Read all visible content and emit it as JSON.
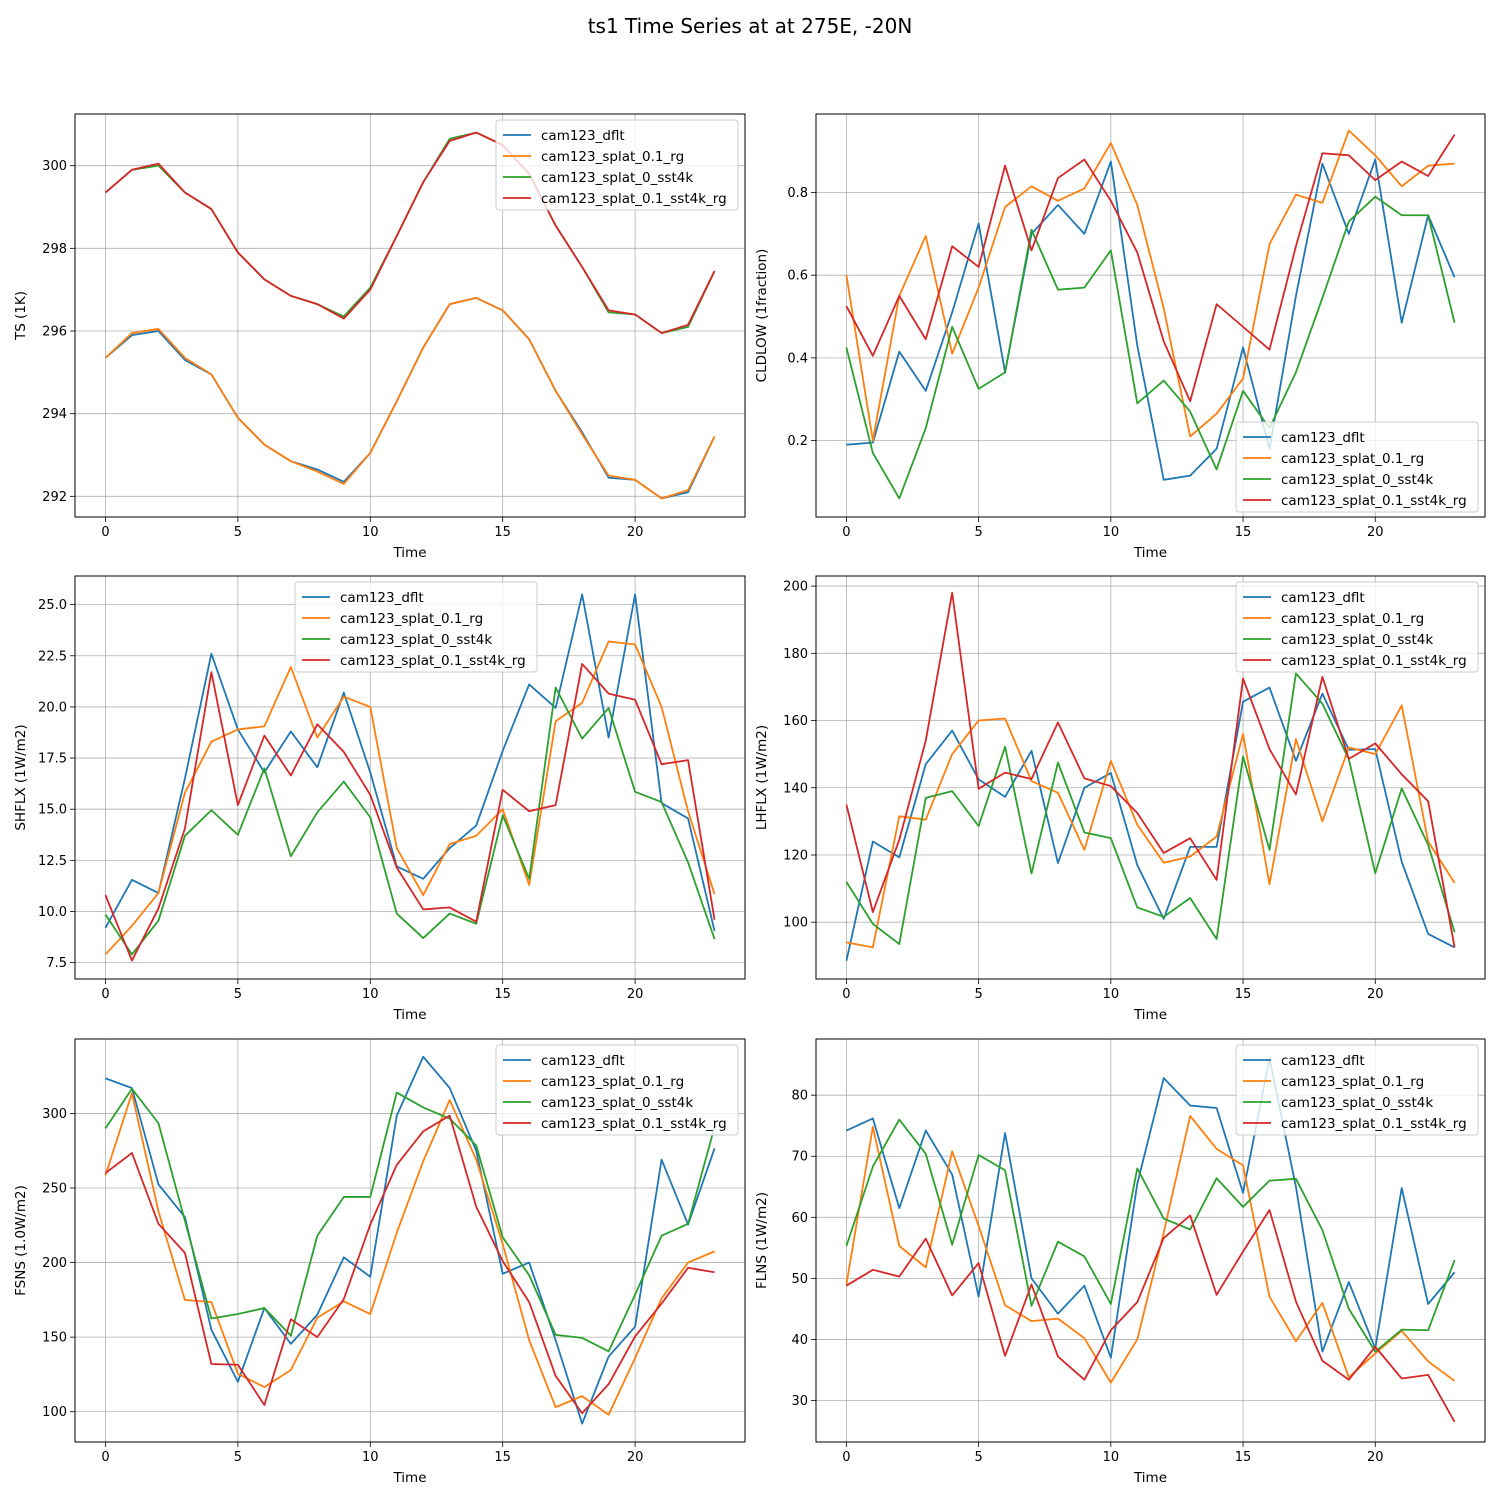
{
  "figure": {
    "title": "ts1 Time Series at at 275E, -20N"
  },
  "colors": {
    "cam123_dflt": "#1f77b4",
    "cam123_splat_0.1_rg": "#ff7f0e",
    "cam123_splat_0_sst4k": "#2ca02c",
    "cam123_splat_0.1_sst4k_rg": "#d62728"
  },
  "chart_data": [
    {
      "type": "line",
      "id": "ts",
      "title": "",
      "xlabel": "Time",
      "ylabel": "TS (1K)",
      "xlim": [
        -1.15,
        24.15
      ],
      "ylim": [
        291.5,
        301.25
      ],
      "xticks": [
        0,
        5,
        10,
        15,
        20
      ],
      "yticks": [
        292,
        294,
        296,
        298,
        300
      ],
      "ytick_labels": [
        "292",
        "294",
        "296",
        "298",
        "300"
      ],
      "grid": true,
      "legend": "top-right",
      "x": [
        0,
        1,
        2,
        3,
        4,
        5,
        6,
        7,
        8,
        9,
        10,
        11,
        12,
        13,
        14,
        15,
        16,
        17,
        18,
        19,
        20,
        21,
        22,
        23
      ],
      "series": [
        {
          "name": "cam123_dflt",
          "values": [
            295.35,
            295.9,
            296.0,
            295.3,
            294.95,
            293.9,
            293.25,
            292.85,
            292.65,
            292.35,
            293.05,
            294.3,
            295.6,
            296.65,
            296.8,
            296.5,
            295.8,
            294.55,
            293.55,
            292.45,
            292.4,
            291.95,
            292.1,
            293.45
          ]
        },
        {
          "name": "cam123_splat_0.1_rg",
          "values": [
            295.35,
            295.95,
            296.05,
            295.35,
            294.95,
            293.9,
            293.25,
            292.85,
            292.6,
            292.3,
            293.05,
            294.3,
            295.6,
            296.65,
            296.8,
            296.5,
            295.8,
            294.55,
            293.5,
            292.5,
            292.4,
            291.95,
            292.15,
            293.45
          ]
        },
        {
          "name": "cam123_splat_0_sst4k",
          "values": [
            299.35,
            299.9,
            300.0,
            299.35,
            298.95,
            297.9,
            297.25,
            296.85,
            296.65,
            296.35,
            297.05,
            298.3,
            299.6,
            300.65,
            300.8,
            300.5,
            299.8,
            298.55,
            297.55,
            296.45,
            296.4,
            295.95,
            296.1,
            297.45
          ]
        },
        {
          "name": "cam123_splat_0.1_sst4k_rg",
          "values": [
            299.35,
            299.9,
            300.05,
            299.35,
            298.95,
            297.9,
            297.25,
            296.85,
            296.65,
            296.3,
            297.0,
            298.3,
            299.6,
            300.6,
            300.8,
            300.5,
            299.8,
            298.55,
            297.55,
            296.5,
            296.4,
            295.95,
            296.15,
            297.45
          ]
        }
      ]
    },
    {
      "type": "line",
      "id": "cldlow",
      "title": "",
      "xlabel": "Time",
      "ylabel": "CLDLOW (1fraction)",
      "xlim": [
        -1.15,
        24.15
      ],
      "ylim": [
        0.015,
        0.99
      ],
      "xticks": [
        0,
        5,
        10,
        15,
        20
      ],
      "yticks": [
        0.2,
        0.4,
        0.6,
        0.8
      ],
      "ytick_labels": [
        "0.2",
        "0.4",
        "0.6",
        "0.8"
      ],
      "grid": true,
      "legend": "lower-right",
      "x": [
        0,
        1,
        2,
        3,
        4,
        5,
        6,
        7,
        8,
        9,
        10,
        11,
        12,
        13,
        14,
        15,
        16,
        17,
        18,
        19,
        20,
        21,
        22,
        23
      ],
      "series": [
        {
          "name": "cam123_dflt",
          "values": [
            0.19,
            0.195,
            0.415,
            0.32,
            0.51,
            0.725,
            0.365,
            0.7,
            0.77,
            0.7,
            0.875,
            0.43,
            0.105,
            0.115,
            0.18,
            0.425,
            0.18,
            0.55,
            0.87,
            0.7,
            0.88,
            0.485,
            0.745,
            0.595
          ]
        },
        {
          "name": "cam123_splat_0.1_rg",
          "values": [
            0.6,
            0.2,
            0.55,
            0.695,
            0.41,
            0.57,
            0.765,
            0.815,
            0.78,
            0.81,
            0.92,
            0.77,
            0.52,
            0.21,
            0.265,
            0.35,
            0.675,
            0.795,
            0.775,
            0.95,
            0.89,
            0.815,
            0.865,
            0.87
          ]
        },
        {
          "name": "cam123_splat_0_sst4k",
          "values": [
            0.425,
            0.17,
            0.06,
            0.23,
            0.475,
            0.325,
            0.365,
            0.71,
            0.565,
            0.57,
            0.66,
            0.29,
            0.345,
            0.27,
            0.13,
            0.32,
            0.23,
            0.365,
            0.545,
            0.73,
            0.79,
            0.745,
            0.745,
            0.485
          ]
        },
        {
          "name": "cam123_splat_0.1_sst4k_rg",
          "values": [
            0.525,
            0.405,
            0.55,
            0.445,
            0.67,
            0.62,
            0.865,
            0.66,
            0.835,
            0.88,
            0.78,
            0.655,
            0.44,
            0.295,
            0.53,
            0.475,
            0.42,
            0.67,
            0.895,
            0.89,
            0.83,
            0.875,
            0.84,
            0.94
          ]
        }
      ]
    },
    {
      "type": "line",
      "id": "shflx",
      "title": "",
      "xlabel": "Time",
      "ylabel": "SHFLX (1W/m2)",
      "xlim": [
        -1.15,
        24.15
      ],
      "ylim": [
        6.7,
        26.4
      ],
      "xticks": [
        0,
        5,
        10,
        15,
        20
      ],
      "yticks": [
        7.5,
        10.0,
        12.5,
        15.0,
        17.5,
        20.0,
        22.5,
        25.0
      ],
      "ytick_labels": [
        "7.5",
        "10.0",
        "12.5",
        "15.0",
        "17.5",
        "20.0",
        "22.5",
        "25.0"
      ],
      "grid": true,
      "legend": "top-center",
      "x": [
        0,
        1,
        2,
        3,
        4,
        5,
        6,
        7,
        8,
        9,
        10,
        11,
        12,
        13,
        14,
        15,
        16,
        17,
        18,
        19,
        20,
        21,
        22,
        23
      ],
      "series": [
        {
          "name": "cam123_dflt",
          "values": [
            9.2,
            11.55,
            10.9,
            16.5,
            22.6,
            18.9,
            16.8,
            18.8,
            17.05,
            20.7,
            16.8,
            12.2,
            11.6,
            13.1,
            14.2,
            17.85,
            21.1,
            19.95,
            25.5,
            18.5,
            25.5,
            15.3,
            14.55,
            9.05
          ]
        },
        {
          "name": "cam123_splat_0.1_rg",
          "values": [
            7.9,
            9.3,
            10.9,
            15.8,
            18.3,
            18.9,
            19.05,
            21.95,
            18.5,
            20.5,
            20.0,
            13.1,
            10.8,
            13.3,
            13.7,
            15.0,
            11.3,
            19.3,
            20.2,
            23.2,
            23.05,
            20.0,
            14.9,
            10.85
          ]
        },
        {
          "name": "cam123_splat_0_sst4k",
          "values": [
            9.85,
            7.9,
            9.55,
            13.7,
            14.95,
            13.75,
            17.0,
            12.7,
            14.85,
            16.35,
            14.6,
            9.9,
            8.7,
            9.9,
            9.4,
            14.7,
            11.6,
            20.95,
            18.45,
            19.95,
            15.85,
            15.35,
            12.4,
            8.65
          ]
        },
        {
          "name": "cam123_splat_0.1_sst4k_rg",
          "values": [
            10.8,
            7.6,
            10.15,
            14.05,
            21.7,
            15.2,
            18.6,
            16.65,
            19.15,
            17.8,
            15.7,
            12.15,
            10.1,
            10.2,
            9.5,
            15.95,
            14.9,
            15.2,
            22.1,
            20.65,
            20.35,
            17.2,
            17.4,
            9.6
          ]
        }
      ]
    },
    {
      "type": "line",
      "id": "lhflx",
      "title": "",
      "xlabel": "Time",
      "ylabel": "LHFLX (1W/m2)",
      "xlim": [
        -1.15,
        24.15
      ],
      "ylim": [
        83.1,
        203.0
      ],
      "xticks": [
        0,
        5,
        10,
        15,
        20
      ],
      "yticks": [
        100,
        120,
        140,
        160,
        180,
        200
      ],
      "ytick_labels": [
        "100",
        "120",
        "140",
        "160",
        "180",
        "200"
      ],
      "grid": true,
      "legend": "top-right",
      "x": [
        0,
        1,
        2,
        3,
        4,
        5,
        6,
        7,
        8,
        9,
        10,
        11,
        12,
        13,
        14,
        15,
        16,
        17,
        18,
        19,
        20,
        21,
        22,
        23
      ],
      "series": [
        {
          "name": "cam123_dflt",
          "values": [
            88.5,
            124.0,
            119.3,
            147.0,
            157.0,
            142.5,
            137.3,
            151.0,
            117.6,
            140.0,
            144.4,
            117.0,
            101.0,
            122.4,
            122.4,
            165.6,
            169.8,
            148.0,
            168.0,
            151.3,
            151.5,
            118.0,
            96.5,
            92.5
          ]
        },
        {
          "name": "cam123_splat_0.1_rg",
          "values": [
            94.0,
            92.5,
            131.5,
            130.5,
            150.0,
            160.0,
            160.6,
            142.0,
            138.5,
            121.5,
            148.0,
            129.0,
            117.7,
            119.5,
            125.5,
            156.0,
            111.3,
            154.5,
            130.0,
            152.0,
            150.0,
            164.5,
            124.0,
            111.7
          ]
        },
        {
          "name": "cam123_splat_0_sst4k",
          "values": [
            112.0,
            99.5,
            93.5,
            137.0,
            139.0,
            128.6,
            152.2,
            114.5,
            147.5,
            126.7,
            125.0,
            104.4,
            101.6,
            107.2,
            95.0,
            149.3,
            121.5,
            174.0,
            165.0,
            148.5,
            114.6,
            139.8,
            123.0,
            97.0
          ]
        },
        {
          "name": "cam123_splat_0.1_sst4k_rg",
          "values": [
            135.0,
            103.0,
            124.5,
            154.0,
            198.0,
            139.7,
            144.5,
            142.6,
            159.4,
            142.8,
            140.5,
            132.5,
            120.6,
            125.0,
            112.6,
            172.5,
            151.5,
            138.0,
            173.0,
            148.6,
            153.2,
            144.0,
            136.0,
            92.5
          ]
        }
      ]
    },
    {
      "type": "line",
      "id": "fsns",
      "title": "",
      "xlabel": "Time",
      "ylabel": "FSNS (1.0W/m2)",
      "xlim": [
        -1.15,
        24.15
      ],
      "ylim": [
        79.7,
        349.9
      ],
      "xticks": [
        0,
        5,
        10,
        15,
        20
      ],
      "yticks": [
        100,
        150,
        200,
        250,
        300
      ],
      "ytick_labels": [
        "100",
        "150",
        "200",
        "250",
        "300"
      ],
      "grid": true,
      "legend": "top-right",
      "x": [
        0,
        1,
        2,
        3,
        4,
        5,
        6,
        7,
        8,
        9,
        10,
        11,
        12,
        13,
        14,
        15,
        16,
        17,
        18,
        19,
        20,
        21,
        22,
        23
      ],
      "series": [
        {
          "name": "cam123_dflt",
          "values": [
            323.5,
            317.0,
            252.5,
            230.5,
            155.0,
            120.0,
            169.5,
            145.5,
            165.0,
            203.5,
            190.5,
            298.5,
            338.0,
            317.0,
            275.0,
            192.5,
            200.0,
            148.0,
            92.0,
            137.0,
            157.0,
            269.0,
            225.5,
            276.5
          ]
        },
        {
          "name": "cam123_splat_0.1_rg",
          "values": [
            258.5,
            313.5,
            234.5,
            175.0,
            173.5,
            125.5,
            116.5,
            128.0,
            163.0,
            174.0,
            165.5,
            220.0,
            268.0,
            309.0,
            269.0,
            212.5,
            148.0,
            103.0,
            110.5,
            98.0,
            136.0,
            176.0,
            200.0,
            207.5
          ]
        },
        {
          "name": "cam123_splat_0_sst4k",
          "values": [
            290.0,
            316.5,
            293.5,
            228.0,
            162.5,
            165.5,
            169.5,
            151.0,
            218.0,
            244.0,
            244.0,
            314.0,
            304.0,
            296.5,
            278.5,
            217.0,
            191.5,
            151.5,
            149.5,
            140.5,
            178.5,
            218.0,
            226.0,
            291.0
          ]
        },
        {
          "name": "cam123_splat_0.1_sst4k_rg",
          "values": [
            260.0,
            273.5,
            226.0,
            206.5,
            132.0,
            131.5,
            104.5,
            162.0,
            150.0,
            175.5,
            225.5,
            265.5,
            288.0,
            298.5,
            237.5,
            201.0,
            173.5,
            124.0,
            99.0,
            118.5,
            150.5,
            172.5,
            196.5,
            193.5
          ]
        }
      ]
    },
    {
      "type": "line",
      "id": "flns",
      "title": "",
      "xlabel": "Time",
      "ylabel": "FLNS (1W/m2)",
      "xlim": [
        -1.15,
        24.15
      ],
      "ylim": [
        23.2,
        89.2
      ],
      "xticks": [
        0,
        5,
        10,
        15,
        20
      ],
      "yticks": [
        30,
        40,
        50,
        60,
        70,
        80
      ],
      "ytick_labels": [
        "30",
        "40",
        "50",
        "60",
        "70",
        "80"
      ],
      "grid": true,
      "legend": "top-right",
      "x": [
        0,
        1,
        2,
        3,
        4,
        5,
        6,
        7,
        8,
        9,
        10,
        11,
        12,
        13,
        14,
        15,
        16,
        17,
        18,
        19,
        20,
        21,
        22,
        23
      ],
      "series": [
        {
          "name": "cam123_dflt",
          "values": [
            74.2,
            76.2,
            61.5,
            74.2,
            67.0,
            47.0,
            73.8,
            50.0,
            44.2,
            48.8,
            37.0,
            65.5,
            82.8,
            78.3,
            77.9,
            64.0,
            86.0,
            65.0,
            38.0,
            49.4,
            38.5,
            64.8,
            45.8,
            51.0
          ]
        },
        {
          "name": "cam123_splat_0.1_rg",
          "values": [
            49.0,
            74.8,
            55.3,
            51.8,
            70.8,
            58.6,
            45.6,
            43.0,
            43.4,
            40.2,
            32.9,
            40.0,
            57.5,
            76.6,
            71.2,
            68.5,
            47.0,
            39.7,
            46.0,
            33.8,
            37.7,
            41.4,
            36.4,
            33.2
          ]
        },
        {
          "name": "cam123_splat_0_sst4k",
          "values": [
            55.3,
            68.3,
            76.0,
            70.4,
            55.5,
            70.2,
            67.7,
            45.5,
            56.0,
            53.6,
            45.8,
            68.0,
            59.8,
            58.0,
            66.4,
            61.7,
            66.0,
            66.3,
            57.9,
            45.0,
            38.0,
            41.6,
            41.5,
            53.0
          ]
        },
        {
          "name": "cam123_splat_0.1_sst4k_rg",
          "values": [
            48.8,
            51.4,
            50.3,
            56.5,
            47.2,
            52.5,
            37.3,
            49.0,
            37.2,
            33.4,
            41.5,
            46.1,
            56.6,
            60.3,
            47.3,
            54.4,
            61.2,
            46.2,
            36.5,
            33.4,
            38.8,
            33.6,
            34.2,
            26.5
          ]
        }
      ]
    }
  ]
}
